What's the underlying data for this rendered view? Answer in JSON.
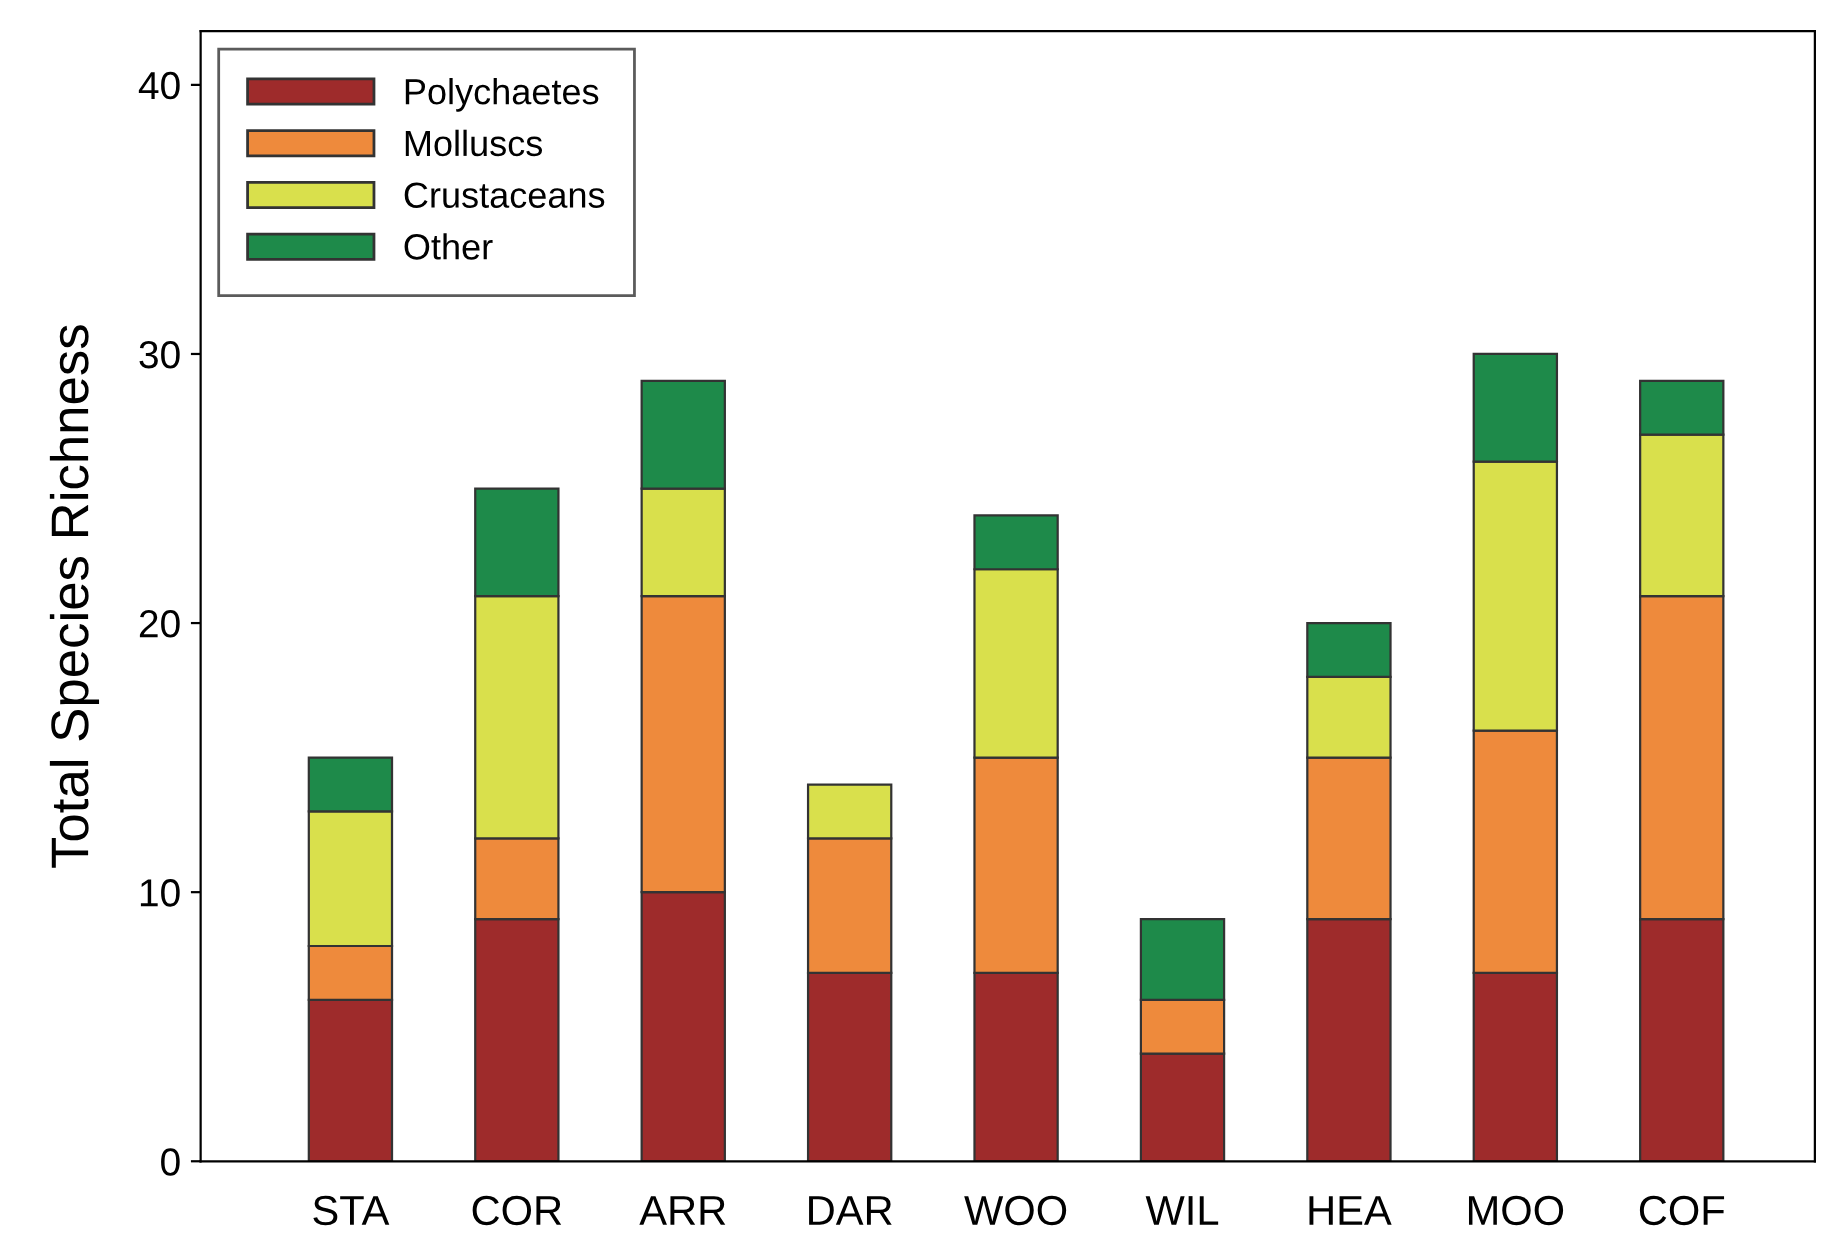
{
  "chart_data": {
    "type": "bar",
    "stacked": true,
    "ylabel": "Total Species Richness",
    "categories": [
      "STA",
      "COR",
      "ARR",
      "DAR",
      "WOO",
      "WIL",
      "HEA",
      "MOO",
      "COF"
    ],
    "series": [
      {
        "name": "Polychaetes",
        "color": "#9e2b2b",
        "values": [
          6,
          9,
          10,
          7,
          7,
          4,
          9,
          7,
          9
        ]
      },
      {
        "name": "Molluscs",
        "color": "#ee8a3c",
        "values": [
          2,
          3,
          11,
          5,
          8,
          2,
          6,
          9,
          12
        ]
      },
      {
        "name": "Crustaceans",
        "color": "#d9e04c",
        "values": [
          5,
          9,
          4,
          2,
          7,
          0,
          3,
          10,
          6
        ]
      },
      {
        "name": "Other",
        "color": "#1e8a4a",
        "values": [
          2,
          4,
          4,
          0,
          2,
          3,
          2,
          4,
          2
        ]
      }
    ],
    "ylim": [
      0,
      42
    ],
    "yticks": [
      0,
      10,
      20,
      30,
      40
    ],
    "grid": false,
    "legend": "top left"
  }
}
